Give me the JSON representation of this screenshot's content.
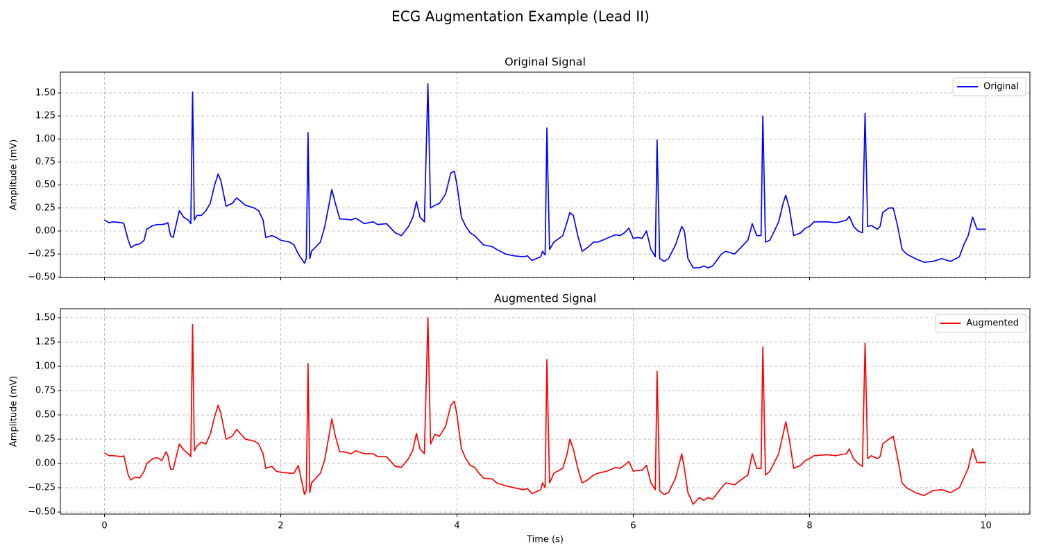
{
  "title": "ECG Augmentation Example (Lead II)",
  "chart_data": [
    {
      "type": "line",
      "title": "Original Signal",
      "ylabel": "Amplitude (mV)",
      "x": [
        0,
        0.05,
        0.1,
        0.2,
        0.22,
        0.27,
        0.3,
        0.35,
        0.4,
        0.45,
        0.48,
        0.55,
        0.6,
        0.65,
        0.7,
        0.72,
        0.75,
        0.78,
        0.85,
        0.9,
        0.95,
        0.98,
        1.0,
        1.02,
        1.05,
        1.1,
        1.15,
        1.2,
        1.25,
        1.29,
        1.32,
        1.38,
        1.45,
        1.5,
        1.55,
        1.6,
        1.7,
        1.75,
        1.8,
        1.83,
        1.9,
        1.95,
        2.0,
        2.1,
        2.15,
        2.2,
        2.27,
        2.29,
        2.31,
        2.33,
        2.35,
        2.45,
        2.5,
        2.55,
        2.58,
        2.62,
        2.67,
        2.72,
        2.8,
        2.85,
        2.95,
        3.05,
        3.1,
        3.2,
        3.3,
        3.37,
        3.45,
        3.5,
        3.54,
        3.58,
        3.63,
        3.67,
        3.7,
        3.75,
        3.8,
        3.87,
        3.93,
        3.97,
        4.0,
        4.05,
        4.1,
        4.15,
        4.2,
        4.25,
        4.3,
        4.4,
        4.45,
        4.55,
        4.65,
        4.75,
        4.8,
        4.85,
        4.95,
        4.97,
        5.0,
        5.02,
        5.05,
        5.1,
        5.2,
        5.25,
        5.28,
        5.32,
        5.37,
        5.42,
        5.48,
        5.55,
        5.6,
        5.7,
        5.8,
        5.85,
        5.9,
        5.95,
        6.0,
        6.05,
        6.1,
        6.15,
        6.2,
        6.25,
        6.27,
        6.3,
        6.35,
        6.4,
        6.48,
        6.55,
        6.58,
        6.62,
        6.68,
        6.75,
        6.8,
        6.85,
        6.9,
        7.0,
        7.05,
        7.15,
        7.25,
        7.3,
        7.35,
        7.4,
        7.45,
        7.47,
        7.5,
        7.55,
        7.65,
        7.7,
        7.73,
        7.77,
        7.82,
        7.9,
        7.95,
        8.0,
        8.05,
        8.2,
        8.3,
        8.35,
        8.42,
        8.45,
        8.5,
        8.55,
        8.6,
        8.63,
        8.66,
        8.7,
        8.77,
        8.8,
        8.83,
        8.9,
        8.95,
        9.0,
        9.05,
        9.1,
        9.2,
        9.3,
        9.4,
        9.5,
        9.6,
        9.7,
        9.75,
        9.8,
        9.85,
        9.9,
        10.0
      ],
      "series": [
        {
          "name": "Original",
          "color": "#0000ff",
          "values": [
            0.12,
            0.09,
            0.1,
            0.09,
            0.08,
            -0.1,
            -0.18,
            -0.15,
            -0.14,
            -0.1,
            0.02,
            0.06,
            0.07,
            0.07,
            0.08,
            0.09,
            -0.05,
            -0.07,
            0.22,
            0.15,
            0.12,
            0.08,
            1.51,
            0.12,
            0.17,
            0.17,
            0.22,
            0.3,
            0.5,
            0.62,
            0.55,
            0.27,
            0.3,
            0.36,
            0.32,
            0.28,
            0.25,
            0.22,
            0.12,
            -0.07,
            -0.05,
            -0.07,
            -0.1,
            -0.12,
            -0.15,
            -0.25,
            -0.35,
            -0.3,
            1.07,
            -0.3,
            -0.22,
            -0.12,
            0.05,
            0.3,
            0.45,
            0.3,
            0.13,
            0.13,
            0.12,
            0.14,
            0.08,
            0.1,
            0.07,
            0.08,
            -0.02,
            -0.05,
            0.05,
            0.15,
            0.32,
            0.15,
            0.1,
            1.6,
            0.25,
            0.28,
            0.3,
            0.4,
            0.63,
            0.65,
            0.5,
            0.15,
            0.05,
            -0.02,
            -0.05,
            -0.1,
            -0.15,
            -0.17,
            -0.2,
            -0.25,
            -0.27,
            -0.28,
            -0.27,
            -0.32,
            -0.28,
            -0.22,
            -0.26,
            1.12,
            -0.2,
            -0.12,
            -0.05,
            0.1,
            0.2,
            0.17,
            -0.05,
            -0.22,
            -0.18,
            -0.12,
            -0.12,
            -0.08,
            -0.04,
            -0.05,
            -0.02,
            0.03,
            -0.08,
            -0.07,
            -0.08,
            0.0,
            -0.2,
            -0.28,
            0.99,
            -0.3,
            -0.33,
            -0.3,
            -0.15,
            0.05,
            0.0,
            -0.3,
            -0.4,
            -0.4,
            -0.38,
            -0.4,
            -0.38,
            -0.25,
            -0.22,
            -0.25,
            -0.15,
            -0.1,
            0.08,
            -0.05,
            -0.05,
            1.25,
            -0.12,
            -0.1,
            0.1,
            0.3,
            0.39,
            0.25,
            -0.05,
            -0.02,
            0.03,
            0.05,
            0.1,
            0.1,
            0.09,
            0.1,
            0.12,
            0.16,
            0.05,
            0.0,
            -0.02,
            1.28,
            0.05,
            0.06,
            0.02,
            0.05,
            0.2,
            0.25,
            0.25,
            0.05,
            -0.2,
            -0.25,
            -0.3,
            -0.34,
            -0.33,
            -0.3,
            -0.33,
            -0.28,
            -0.15,
            -0.05,
            0.15,
            0.02,
            0.02
          ]
        }
      ],
      "xlim": [
        -0.5,
        10.5
      ],
      "ylim": [
        -0.505,
        1.726
      ],
      "yticks": [
        {
          "value": -0.5,
          "label": "−0.50"
        },
        {
          "value": -0.25,
          "label": "−0.25"
        },
        {
          "value": 0,
          "label": "0.00"
        },
        {
          "value": 0.25,
          "label": "0.25"
        },
        {
          "value": 0.5,
          "label": "0.50"
        },
        {
          "value": 0.75,
          "label": "0.75"
        },
        {
          "value": 1,
          "label": "1.00"
        },
        {
          "value": 1.25,
          "label": "1.25"
        },
        {
          "value": 1.5,
          "label": "1.50"
        }
      ],
      "grid": true,
      "legend": "upper right"
    },
    {
      "type": "line",
      "title": "Augmented Signal",
      "xlabel": "Time (s)",
      "ylabel": "Amplitude (mV)",
      "x": [
        0,
        0.05,
        0.1,
        0.2,
        0.22,
        0.27,
        0.3,
        0.35,
        0.4,
        0.45,
        0.48,
        0.55,
        0.6,
        0.65,
        0.7,
        0.72,
        0.75,
        0.78,
        0.85,
        0.9,
        0.95,
        0.98,
        1.0,
        1.02,
        1.05,
        1.1,
        1.15,
        1.2,
        1.25,
        1.29,
        1.32,
        1.38,
        1.45,
        1.5,
        1.55,
        1.6,
        1.7,
        1.75,
        1.8,
        1.83,
        1.9,
        1.95,
        2.0,
        2.1,
        2.15,
        2.2,
        2.27,
        2.29,
        2.31,
        2.33,
        2.35,
        2.45,
        2.5,
        2.55,
        2.58,
        2.62,
        2.67,
        2.72,
        2.8,
        2.85,
        2.95,
        3.05,
        3.1,
        3.2,
        3.3,
        3.37,
        3.45,
        3.5,
        3.54,
        3.58,
        3.63,
        3.67,
        3.7,
        3.75,
        3.8,
        3.87,
        3.93,
        3.97,
        4.0,
        4.05,
        4.1,
        4.15,
        4.2,
        4.25,
        4.3,
        4.4,
        4.45,
        4.55,
        4.65,
        4.75,
        4.8,
        4.85,
        4.95,
        4.97,
        5.0,
        5.02,
        5.05,
        5.1,
        5.2,
        5.25,
        5.28,
        5.32,
        5.37,
        5.42,
        5.48,
        5.55,
        5.6,
        5.7,
        5.8,
        5.85,
        5.9,
        5.95,
        6.0,
        6.05,
        6.1,
        6.15,
        6.2,
        6.25,
        6.27,
        6.3,
        6.35,
        6.4,
        6.48,
        6.55,
        6.58,
        6.62,
        6.68,
        6.75,
        6.8,
        6.85,
        6.9,
        7.0,
        7.05,
        7.15,
        7.25,
        7.3,
        7.35,
        7.4,
        7.45,
        7.47,
        7.5,
        7.55,
        7.65,
        7.7,
        7.73,
        7.77,
        7.82,
        7.9,
        7.95,
        8.0,
        8.05,
        8.2,
        8.3,
        8.35,
        8.42,
        8.45,
        8.5,
        8.55,
        8.6,
        8.63,
        8.66,
        8.7,
        8.77,
        8.8,
        8.83,
        8.9,
        8.95,
        9.0,
        9.05,
        9.1,
        9.2,
        9.3,
        9.4,
        9.5,
        9.6,
        9.7,
        9.75,
        9.8,
        9.85,
        9.9,
        10.0
      ],
      "series": [
        {
          "name": "Augmented",
          "color": "#ff0000",
          "values": [
            0.11,
            0.08,
            0.08,
            0.07,
            0.08,
            -0.12,
            -0.17,
            -0.14,
            -0.15,
            -0.08,
            0.0,
            0.05,
            0.06,
            0.03,
            0.12,
            0.08,
            -0.06,
            -0.06,
            0.2,
            0.14,
            0.1,
            0.07,
            1.43,
            0.13,
            0.18,
            0.22,
            0.2,
            0.3,
            0.48,
            0.6,
            0.52,
            0.25,
            0.28,
            0.35,
            0.3,
            0.25,
            0.23,
            0.2,
            0.1,
            -0.05,
            -0.03,
            -0.08,
            -0.09,
            -0.1,
            -0.1,
            -0.02,
            -0.32,
            -0.28,
            1.03,
            -0.3,
            -0.2,
            -0.1,
            0.04,
            0.3,
            0.46,
            0.28,
            0.12,
            0.12,
            0.1,
            0.13,
            0.1,
            0.1,
            0.07,
            0.07,
            -0.03,
            -0.04,
            0.05,
            0.14,
            0.31,
            0.15,
            0.1,
            1.5,
            0.2,
            0.3,
            0.28,
            0.38,
            0.6,
            0.64,
            0.5,
            0.15,
            0.05,
            -0.02,
            -0.04,
            -0.1,
            -0.15,
            -0.16,
            -0.2,
            -0.23,
            -0.25,
            -0.27,
            -0.26,
            -0.31,
            -0.27,
            -0.2,
            -0.25,
            1.07,
            -0.2,
            -0.1,
            -0.05,
            0.1,
            0.25,
            0.15,
            -0.05,
            -0.2,
            -0.17,
            -0.12,
            -0.1,
            -0.08,
            -0.04,
            -0.05,
            -0.02,
            0.02,
            -0.08,
            -0.07,
            -0.07,
            -0.02,
            -0.2,
            -0.27,
            0.95,
            -0.28,
            -0.32,
            -0.3,
            -0.15,
            0.1,
            -0.05,
            -0.3,
            -0.42,
            -0.35,
            -0.38,
            -0.35,
            -0.37,
            -0.25,
            -0.2,
            -0.22,
            -0.15,
            -0.12,
            0.1,
            -0.05,
            -0.05,
            1.2,
            -0.12,
            -0.08,
            0.1,
            0.3,
            0.43,
            0.25,
            -0.05,
            -0.02,
            0.03,
            0.05,
            0.08,
            0.09,
            0.08,
            0.09,
            0.1,
            0.15,
            0.05,
            0.0,
            -0.03,
            1.24,
            0.05,
            0.08,
            0.05,
            0.07,
            0.2,
            0.25,
            0.28,
            0.05,
            -0.2,
            -0.25,
            -0.3,
            -0.33,
            -0.28,
            -0.27,
            -0.3,
            -0.25,
            -0.15,
            -0.05,
            0.15,
            0.01,
            0.01
          ]
        }
      ],
      "xlim": [
        -0.5,
        10.5
      ],
      "ylim": [
        -0.521,
        1.593
      ],
      "xticks": [
        0,
        2,
        4,
        6,
        8,
        10
      ],
      "yticks": [
        {
          "value": -0.5,
          "label": "−0.50"
        },
        {
          "value": -0.25,
          "label": "−0.25"
        },
        {
          "value": 0,
          "label": "0.00"
        },
        {
          "value": 0.25,
          "label": "0.25"
        },
        {
          "value": 0.5,
          "label": "0.50"
        },
        {
          "value": 0.75,
          "label": "0.75"
        },
        {
          "value": 1,
          "label": "1.00"
        },
        {
          "value": 1.25,
          "label": "1.25"
        },
        {
          "value": 1.5,
          "label": "1.50"
        }
      ],
      "grid": true,
      "legend": "upper right"
    }
  ]
}
